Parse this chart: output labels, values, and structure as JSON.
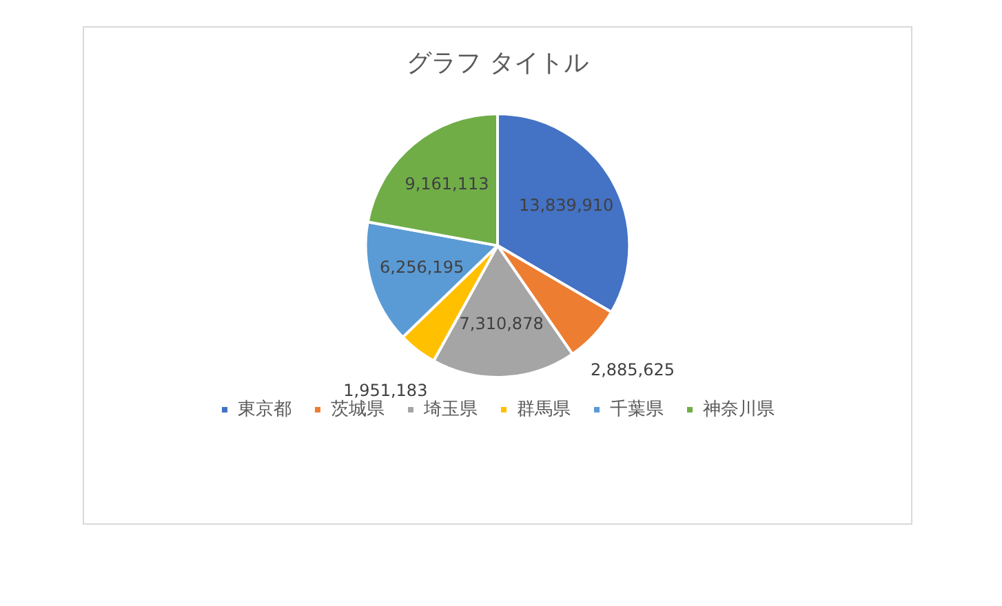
{
  "chart_data": {
    "type": "pie",
    "title": "グラフ タイトル",
    "categories": [
      "東京都",
      "茨城県",
      "埼玉県",
      "群馬県",
      "千葉県",
      "神奈川県"
    ],
    "values": [
      13839910,
      2885625,
      7310878,
      1951183,
      6256195,
      9161113
    ],
    "colors": [
      "#4472c4",
      "#ed7d31",
      "#a5a5a5",
      "#ffc000",
      "#5b9bd5",
      "#70ad47"
    ],
    "value_labels": [
      "13,839,910",
      "2,885,625",
      "7,310,878",
      "1,951,183",
      "6,256,195",
      "9,161,113"
    ],
    "legend": "bottom"
  }
}
